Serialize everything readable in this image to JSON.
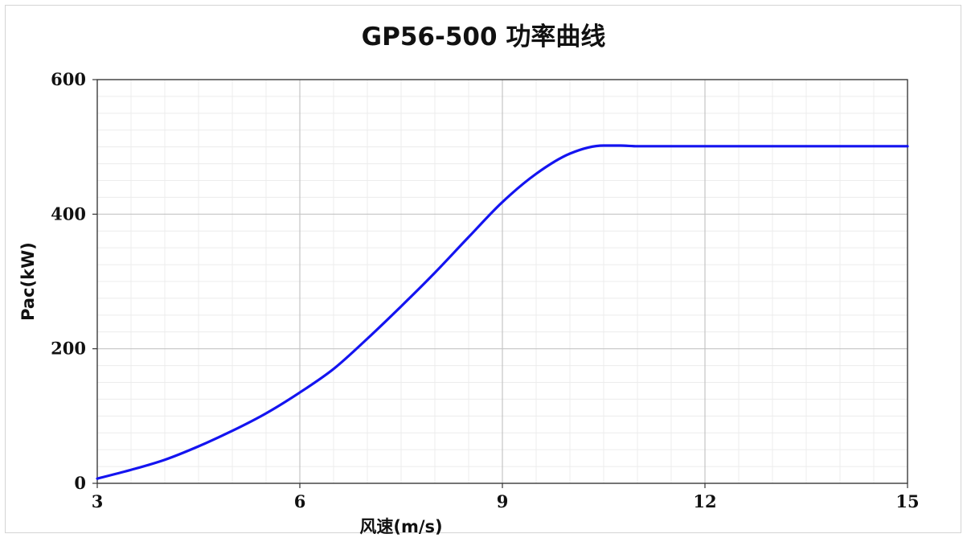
{
  "chart_data": {
    "type": "line",
    "title": "GP56-500 功率曲线",
    "xlabel": "风速(m/s)",
    "ylabel": "Pac(kW)",
    "xlim": [
      3,
      15
    ],
    "ylim": [
      0,
      600
    ],
    "x_ticks": [
      3,
      6,
      9,
      12,
      15
    ],
    "y_ticks": [
      0,
      200,
      400,
      600
    ],
    "grid": true,
    "legend": "none",
    "series": [
      {
        "color": "#1414f0",
        "x": [
          3,
          3.5,
          4,
          4.5,
          5,
          5.5,
          6,
          6.5,
          7,
          7.5,
          8,
          8.5,
          9,
          9.5,
          10,
          10.5,
          10.75,
          11,
          11.5,
          12,
          13,
          14,
          15
        ],
        "y": [
          7,
          20,
          35,
          55,
          78,
          104,
          135,
          170,
          215,
          263,
          313,
          366,
          418,
          460,
          490,
          502,
          502,
          501,
          501,
          501,
          501,
          501,
          501
        ]
      }
    ]
  }
}
